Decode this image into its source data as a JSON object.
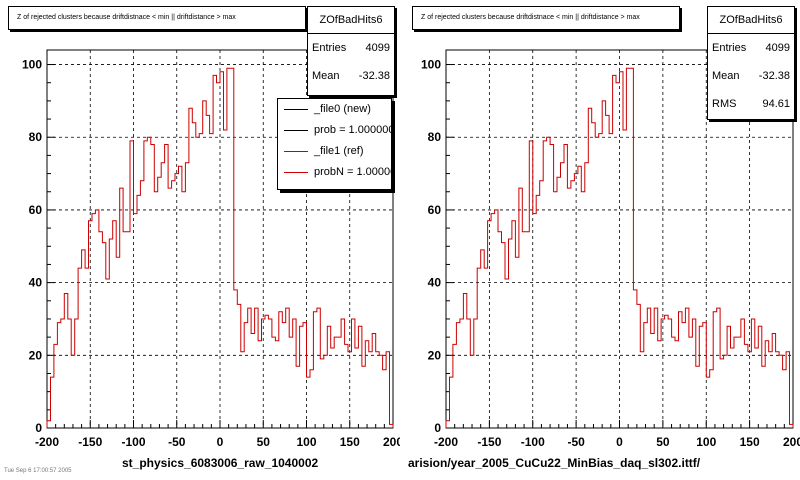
{
  "chart_data": [
    {
      "type": "histogram",
      "title": "Z of rejected clusters because driftdistnace < min || driftdistance > max",
      "hist_name": "ZOfBadHits6",
      "stats": [
        {
          "label": "Entries",
          "value": "4099"
        },
        {
          "label": "Mean",
          "value": "-32.38"
        }
      ],
      "legend": [
        {
          "label": "_file0 (new)",
          "color": "#000000"
        },
        {
          "label": "prob = 1.000000",
          "color": "#000000"
        },
        {
          "label": "_file1 (ref)",
          "color": "#cc0000"
        },
        {
          "label": "probN = 1.000000",
          "color": "#cc0000"
        }
      ],
      "xlabel": "st_physics_6083006_raw_1040002",
      "xlim": [
        -200,
        200
      ],
      "ylim": [
        0,
        104
      ],
      "x_ticks": [
        -200,
        -150,
        -100,
        -50,
        0,
        50,
        100,
        150,
        200
      ],
      "y_ticks": [
        0,
        20,
        40,
        60,
        80,
        100
      ],
      "grid": true,
      "bin_edges_start": -200,
      "bin_width": 4,
      "series": [
        {
          "name": "_file1 (ref)",
          "color": "#cc0000",
          "values": [
            2,
            14,
            23,
            29,
            30,
            37,
            30,
            20,
            30,
            44,
            49,
            44,
            57,
            59,
            60,
            54,
            51,
            41,
            52,
            57,
            47,
            66,
            54,
            54,
            79,
            59,
            64,
            68,
            79,
            80,
            78,
            65,
            69,
            73,
            78,
            66,
            68,
            70,
            72,
            65,
            73,
            88,
            84,
            80,
            81,
            90,
            86,
            81,
            97,
            95,
            98,
            82,
            99,
            99,
            38,
            34,
            21,
            29,
            33,
            26,
            33,
            24,
            30,
            31,
            30,
            25,
            24,
            32,
            29,
            33,
            25,
            30,
            17,
            28,
            29,
            14,
            16,
            32,
            33,
            19,
            20,
            28,
            22,
            25,
            25,
            30,
            23,
            21,
            30,
            22,
            28,
            17,
            24,
            21,
            26,
            21,
            20,
            16,
            21,
            1
          ]
        }
      ]
    },
    {
      "type": "histogram",
      "title": "Z of rejected clusters because driftdistnace < min || driftdistance > max",
      "hist_name": "ZOfBadHits6",
      "stats": [
        {
          "label": "Entries",
          "value": "4099"
        },
        {
          "label": "Mean",
          "value": "-32.38"
        },
        {
          "label": "RMS",
          "value": "94.61"
        }
      ],
      "xlabel": "arision/year_2005_CuCu22_MinBias_daq_sl302.ittf/",
      "xlim": [
        -200,
        200
      ],
      "ylim": [
        0,
        104
      ],
      "x_ticks": [
        -200,
        -150,
        -100,
        -50,
        0,
        50,
        100,
        150,
        200
      ],
      "y_ticks": [
        0,
        20,
        40,
        60,
        80,
        100
      ],
      "grid": true,
      "bin_edges_start": -200,
      "bin_width": 4,
      "series": [
        {
          "name": "_file1 (ref)",
          "color": "#cc0000",
          "values": [
            2,
            14,
            23,
            29,
            30,
            37,
            30,
            20,
            30,
            44,
            49,
            44,
            57,
            59,
            60,
            54,
            51,
            41,
            52,
            57,
            47,
            66,
            54,
            54,
            79,
            59,
            64,
            68,
            79,
            80,
            78,
            65,
            69,
            73,
            78,
            66,
            68,
            70,
            72,
            65,
            73,
            88,
            84,
            80,
            81,
            90,
            86,
            81,
            97,
            95,
            98,
            82,
            99,
            99,
            38,
            34,
            21,
            29,
            33,
            26,
            33,
            24,
            30,
            31,
            30,
            25,
            24,
            32,
            29,
            33,
            25,
            30,
            17,
            28,
            29,
            14,
            16,
            32,
            33,
            19,
            20,
            28,
            22,
            25,
            25,
            30,
            23,
            21,
            30,
            22,
            28,
            17,
            24,
            21,
            26,
            21,
            20,
            16,
            21,
            1
          ]
        }
      ]
    }
  ],
  "footnote": "Tue Sep 6 17:00:57 2005"
}
